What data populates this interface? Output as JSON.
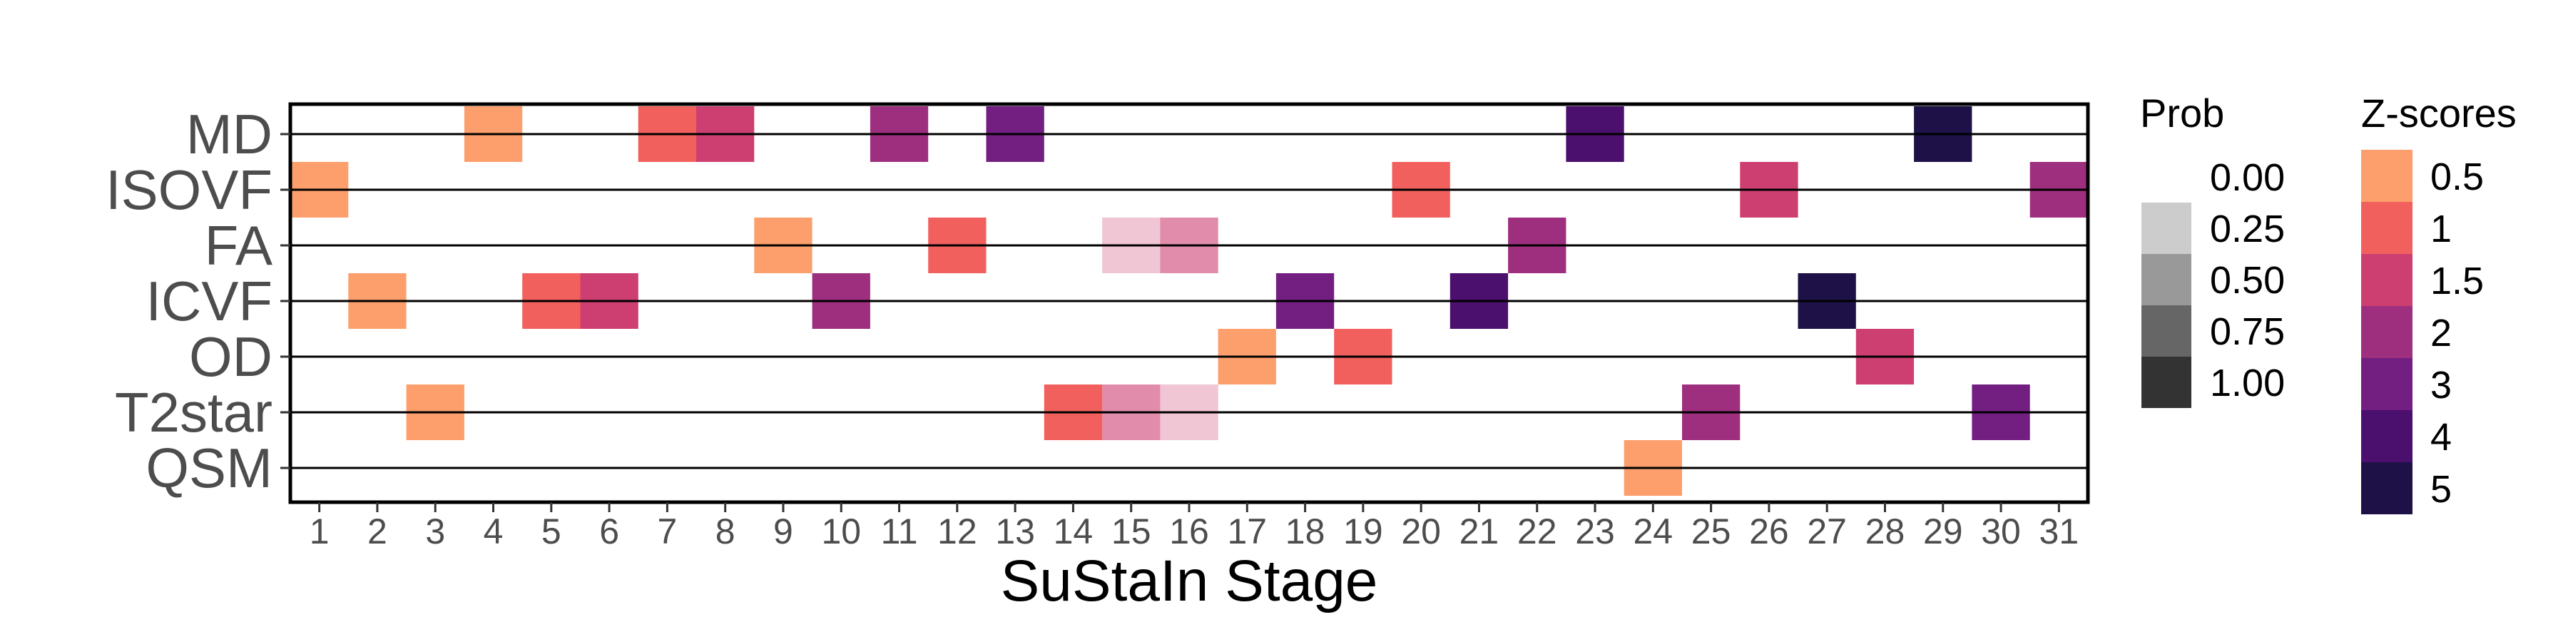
{
  "chart_data": {
    "type": "heatmap",
    "xlabel": "SuStaIn Stage",
    "ylabel": "",
    "y_categories": [
      "MD",
      "ISOVF",
      "FA",
      "ICVF",
      "OD",
      "T2star",
      "QSM"
    ],
    "x_ticks": [
      1,
      2,
      3,
      4,
      5,
      6,
      7,
      8,
      9,
      10,
      11,
      12,
      13,
      14,
      15,
      16,
      17,
      18,
      19,
      20,
      21,
      22,
      23,
      24,
      25,
      26,
      27,
      28,
      29,
      30,
      31
    ],
    "xlim": [
      0.5,
      31.5
    ],
    "grid": "horizontal lines at each category",
    "legend_placement": "right",
    "z_legend": {
      "title": "Z-scores",
      "labels": [
        "0.5",
        "1",
        "1.5",
        "2",
        "3",
        "4",
        "5"
      ],
      "colors": [
        "#FD9F6C",
        "#F1605D",
        "#CD3F71",
        "#9E2F7F",
        "#721F81",
        "#4B0F6E",
        "#1D1147",
        "#000000"
      ]
    },
    "prob_legend": {
      "title": "Prob",
      "labels": [
        "0.00",
        "0.25",
        "0.50",
        "0.75",
        "1.00"
      ],
      "colors": [
        "#ffffff",
        "#cccccc",
        "#999999",
        "#666666",
        "#333333"
      ]
    },
    "cells": [
      {
        "biomarker": "MD",
        "stage": 4,
        "z": "0.5",
        "prob": 1.0
      },
      {
        "biomarker": "MD",
        "stage": 7,
        "z": "1",
        "prob": 1.0
      },
      {
        "biomarker": "MD",
        "stage": 8,
        "z": "1.5",
        "prob": 1.0
      },
      {
        "biomarker": "MD",
        "stage": 11,
        "z": "2",
        "prob": 1.0
      },
      {
        "biomarker": "MD",
        "stage": 13,
        "z": "3",
        "prob": 1.0
      },
      {
        "biomarker": "MD",
        "stage": 23,
        "z": "4",
        "prob": 1.0
      },
      {
        "biomarker": "MD",
        "stage": 29,
        "z": "5",
        "prob": 1.0
      },
      {
        "biomarker": "ISOVF",
        "stage": 1,
        "z": "0.5",
        "prob": 1.0
      },
      {
        "biomarker": "ISOVF",
        "stage": 20,
        "z": "1",
        "prob": 1.0
      },
      {
        "biomarker": "ISOVF",
        "stage": 26,
        "z": "1.5",
        "prob": 1.0
      },
      {
        "biomarker": "ISOVF",
        "stage": 31,
        "z": "2",
        "prob": 1.0
      },
      {
        "biomarker": "FA",
        "stage": 9,
        "z": "0.5",
        "prob": 1.0
      },
      {
        "biomarker": "FA",
        "stage": 12,
        "z": "1",
        "prob": 1.0
      },
      {
        "biomarker": "FA",
        "stage": 15,
        "z": "1.5",
        "prob": 0.3
      },
      {
        "biomarker": "FA",
        "stage": 16,
        "z": "1.5",
        "prob": 0.6
      },
      {
        "biomarker": "FA",
        "stage": 22,
        "z": "2",
        "prob": 1.0
      },
      {
        "biomarker": "ICVF",
        "stage": 2,
        "z": "0.5",
        "prob": 1.0
      },
      {
        "biomarker": "ICVF",
        "stage": 5,
        "z": "1",
        "prob": 1.0
      },
      {
        "biomarker": "ICVF",
        "stage": 6,
        "z": "1.5",
        "prob": 1.0
      },
      {
        "biomarker": "ICVF",
        "stage": 10,
        "z": "2",
        "prob": 1.0
      },
      {
        "biomarker": "ICVF",
        "stage": 18,
        "z": "3",
        "prob": 1.0
      },
      {
        "biomarker": "ICVF",
        "stage": 21,
        "z": "4",
        "prob": 1.0
      },
      {
        "biomarker": "ICVF",
        "stage": 27,
        "z": "5",
        "prob": 1.0
      },
      {
        "biomarker": "OD",
        "stage": 17,
        "z": "0.5",
        "prob": 1.0
      },
      {
        "biomarker": "OD",
        "stage": 19,
        "z": "1",
        "prob": 1.0
      },
      {
        "biomarker": "OD",
        "stage": 28,
        "z": "1.5",
        "prob": 1.0
      },
      {
        "biomarker": "T2star",
        "stage": 3,
        "z": "0.5",
        "prob": 1.0
      },
      {
        "biomarker": "T2star",
        "stage": 14,
        "z": "1",
        "prob": 1.0
      },
      {
        "biomarker": "T2star",
        "stage": 15,
        "z": "1.5",
        "prob": 0.6
      },
      {
        "biomarker": "T2star",
        "stage": 16,
        "z": "1.5",
        "prob": 0.3
      },
      {
        "biomarker": "T2star",
        "stage": 25,
        "z": "2",
        "prob": 1.0
      },
      {
        "biomarker": "T2star",
        "stage": 30,
        "z": "3",
        "prob": 1.0
      },
      {
        "biomarker": "QSM",
        "stage": 24,
        "z": "0.5",
        "prob": 1.0
      }
    ]
  }
}
